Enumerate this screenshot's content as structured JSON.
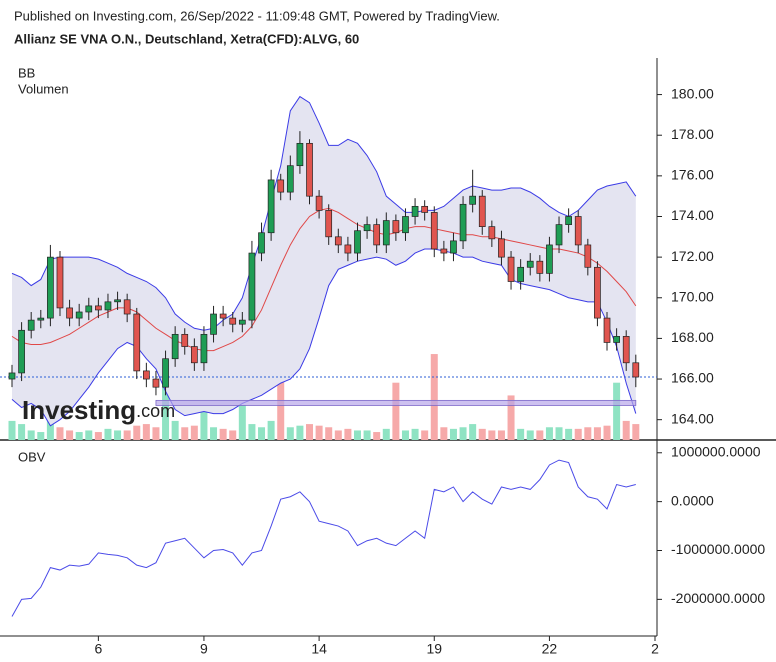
{
  "header": "Published on Investing.com, 26/Sep/2022 - 11:09:48 GMT, Powered by TradingView.",
  "chart_data": [
    {
      "type": "candlestick",
      "title": "Allianz SE VNA O.N., Deutschland, Xetra(CFD):ALVG, 60",
      "logo": "Investing",
      "logo_suffix": ".com",
      "open": [
        166.0,
        166.3,
        168.4,
        168.9,
        169.0,
        172.0,
        169.5,
        169.0,
        169.3,
        169.6,
        169.4,
        169.8,
        169.9,
        169.2,
        166.4,
        166.0,
        165.6,
        167.0,
        168.2,
        167.6,
        166.8,
        168.2,
        169.2,
        169.0,
        168.7,
        168.9,
        172.2,
        173.2,
        175.8,
        175.2,
        176.5,
        177.6,
        175.0,
        174.3,
        173.0,
        172.6,
        172.2,
        173.3,
        173.6,
        172.6,
        173.8,
        173.2,
        174.0,
        174.5,
        174.2,
        172.4,
        172.2,
        172.8,
        174.6,
        175.0,
        173.5,
        172.9,
        172.0,
        170.8,
        171.5,
        171.8,
        171.2,
        172.6,
        173.6,
        174.0,
        172.6,
        171.5,
        169.0,
        167.8,
        168.1,
        166.8,
        null,
        null
      ],
      "high": [
        166.7,
        168.8,
        169.3,
        169.4,
        172.6,
        172.3,
        169.9,
        169.7,
        170.0,
        170.0,
        170.2,
        170.3,
        170.2,
        169.5,
        166.8,
        166.4,
        167.4,
        168.6,
        168.5,
        168.0,
        168.6,
        169.6,
        169.6,
        169.3,
        169.3,
        172.8,
        173.7,
        176.3,
        176.1,
        177.0,
        178.2,
        177.8,
        175.3,
        174.6,
        173.4,
        173.0,
        173.7,
        174.0,
        173.9,
        174.2,
        174.1,
        174.4,
        174.9,
        174.8,
        174.5,
        172.8,
        173.2,
        175.0,
        176.3,
        175.3,
        173.8,
        173.3,
        172.3,
        171.9,
        172.2,
        172.1,
        173.0,
        174.0,
        174.4,
        174.3,
        172.9,
        171.8,
        169.3,
        168.5,
        168.4,
        167.2,
        null,
        null
      ],
      "low": [
        165.6,
        165.9,
        168.0,
        168.5,
        168.6,
        169.1,
        168.6,
        168.6,
        168.9,
        169.0,
        169.0,
        169.4,
        168.8,
        166.0,
        165.6,
        165.2,
        165.2,
        166.6,
        167.2,
        166.4,
        166.4,
        167.8,
        168.6,
        168.3,
        168.3,
        168.5,
        171.8,
        172.8,
        174.8,
        174.8,
        176.1,
        174.6,
        173.9,
        172.6,
        172.2,
        171.8,
        171.8,
        172.9,
        172.2,
        172.2,
        172.8,
        172.8,
        173.6,
        173.8,
        172.0,
        171.8,
        171.8,
        172.4,
        174.2,
        173.1,
        172.5,
        171.6,
        170.4,
        170.4,
        171.1,
        170.8,
        170.8,
        172.2,
        173.2,
        172.2,
        171.1,
        168.6,
        167.4,
        167.4,
        166.4,
        165.6,
        null,
        null
      ],
      "close": [
        166.3,
        168.4,
        168.9,
        169.0,
        172.0,
        169.5,
        169.0,
        169.3,
        169.6,
        169.4,
        169.8,
        169.9,
        169.2,
        166.4,
        166.0,
        165.6,
        167.0,
        168.2,
        167.6,
        166.8,
        168.2,
        169.2,
        169.0,
        168.7,
        168.9,
        172.2,
        173.2,
        175.8,
        175.2,
        176.5,
        177.6,
        175.0,
        174.3,
        173.0,
        172.6,
        172.2,
        173.3,
        173.6,
        172.6,
        173.8,
        173.2,
        174.0,
        174.5,
        174.2,
        172.4,
        172.2,
        172.8,
        174.6,
        175.0,
        173.5,
        172.9,
        172.0,
        170.8,
        171.5,
        171.8,
        171.2,
        172.6,
        173.6,
        174.0,
        172.6,
        171.5,
        169.0,
        167.8,
        168.1,
        166.8,
        166.1,
        null,
        null
      ],
      "up_color": "#1f9d55",
      "down_color": "#e0554f",
      "bands": {
        "name": "BB",
        "line_color": "#3b3be6",
        "middle_color": "#e04848",
        "fill": "#e4e4f1",
        "upper": [
          171.2,
          171.0,
          170.6,
          170.9,
          171.9,
          172.0,
          172.0,
          172.0,
          172.0,
          171.9,
          171.7,
          171.5,
          171.2,
          171.0,
          170.8,
          170.5,
          170.0,
          169.2,
          168.8,
          168.5,
          168.4,
          168.5,
          168.9,
          169.2,
          170.0,
          171.6,
          173.0,
          174.8,
          176.5,
          179.2,
          179.9,
          179.6,
          178.6,
          177.5,
          177.5,
          177.8,
          177.6,
          177.0,
          176.2,
          175.0,
          174.6,
          174.2,
          174.2,
          174.3,
          174.3,
          174.5,
          174.9,
          175.3,
          175.5,
          175.4,
          175.3,
          175.3,
          175.4,
          175.4,
          175.2,
          174.9,
          174.5,
          174.2,
          174.0,
          174.3,
          174.8,
          175.3,
          175.5,
          175.6,
          175.7,
          175.0,
          null,
          null
        ],
        "middle": [
          168.1,
          167.8,
          167.7,
          167.7,
          167.8,
          168.0,
          168.2,
          168.5,
          168.8,
          169.1,
          169.3,
          169.5,
          169.5,
          169.3,
          168.9,
          168.5,
          168.2,
          167.9,
          167.7,
          167.5,
          167.4,
          167.4,
          167.6,
          167.8,
          168.1,
          168.6,
          169.4,
          170.5,
          171.6,
          172.6,
          173.4,
          174.0,
          174.3,
          174.4,
          174.2,
          173.9,
          173.6,
          173.4,
          173.2,
          173.1,
          173.2,
          173.4,
          173.5,
          173.5,
          173.4,
          173.3,
          173.2,
          173.1,
          173.1,
          173.0,
          173.0,
          172.9,
          172.8,
          172.7,
          172.6,
          172.5,
          172.4,
          172.4,
          172.3,
          172.2,
          172.0,
          171.7,
          171.3,
          170.8,
          170.3,
          169.6,
          null,
          null
        ],
        "lower": [
          165.0,
          164.6,
          164.8,
          164.5,
          163.7,
          164.0,
          164.4,
          165.0,
          165.6,
          166.3,
          166.9,
          167.5,
          167.8,
          167.6,
          167.0,
          166.5,
          165.4,
          164.5,
          164.2,
          164.3,
          164.4,
          164.3,
          164.3,
          164.5,
          164.8,
          165.0,
          165.2,
          165.5,
          165.8,
          166.0,
          166.5,
          167.5,
          169.0,
          170.6,
          171.4,
          171.6,
          171.8,
          171.9,
          172.0,
          171.9,
          171.6,
          171.8,
          172.2,
          172.4,
          172.4,
          172.3,
          172.2,
          172.0,
          172.0,
          171.8,
          171.7,
          171.6,
          170.9,
          170.7,
          170.6,
          170.5,
          170.4,
          170.2,
          170.0,
          169.9,
          169.8,
          169.8,
          168.8,
          167.6,
          165.8,
          164.3,
          null,
          null
        ]
      },
      "volume": {
        "name": "Volumen",
        "up_color": "#8fe3c3",
        "down_color": "#f6a9a9",
        "vlim": [
          0,
          1200000
        ],
        "values": [
          60000,
          50000,
          30000,
          25000,
          160000,
          40000,
          30000,
          25000,
          30000,
          25000,
          35000,
          30000,
          30000,
          45000,
          50000,
          40000,
          180000,
          60000,
          40000,
          45000,
          100000,
          40000,
          35000,
          30000,
          110000,
          50000,
          40000,
          60000,
          200000,
          40000,
          45000,
          50000,
          45000,
          40000,
          30000,
          35000,
          30000,
          30000,
          25000,
          35000,
          180000,
          30000,
          35000,
          30000,
          270000,
          40000,
          35000,
          40000,
          50000,
          35000,
          30000,
          30000,
          140000,
          35000,
          30000,
          30000,
          40000,
          40000,
          35000,
          35000,
          40000,
          40000,
          45000,
          180000,
          60000,
          50000,
          null,
          null
        ]
      },
      "highlight_band": [
        164.7,
        164.95
      ],
      "highlight_color": "#b8a6ea",
      "last_price_line": true,
      "last_price_color": "#2c5fd6",
      "ylim": [
        163,
        181.8
      ],
      "yticks": [
        {
          "value": 164,
          "label": "164.00"
        },
        {
          "value": 166,
          "label": "166.00"
        },
        {
          "value": 168,
          "label": "168.00"
        },
        {
          "value": 170,
          "label": "170.00"
        },
        {
          "value": 172,
          "label": "172.00"
        },
        {
          "value": 174,
          "label": "174.00"
        },
        {
          "value": 176,
          "label": "176.00"
        },
        {
          "value": 178,
          "label": "178.00"
        },
        {
          "value": 180,
          "label": "180.00"
        }
      ]
    },
    {
      "type": "line",
      "categories": [
        null,
        null,
        null,
        null,
        null,
        null,
        null,
        null,
        null,
        "6",
        null,
        null,
        null,
        null,
        null,
        null,
        null,
        null,
        null,
        null,
        "9",
        null,
        null,
        null,
        null,
        null,
        null,
        null,
        null,
        null,
        null,
        null,
        "14",
        null,
        null,
        null,
        null,
        null,
        null,
        null,
        null,
        null,
        null,
        null,
        "19",
        null,
        null,
        null,
        null,
        null,
        null,
        null,
        null,
        null,
        null,
        null,
        "22",
        null,
        null,
        null,
        null,
        null,
        null,
        null,
        null,
        null,
        null,
        "2"
      ],
      "series": [
        {
          "name": "OBV",
          "color": "#4b4be8",
          "values": [
            -2350000,
            -2000000,
            -1980000,
            -1750000,
            -1350000,
            -1400000,
            -1300000,
            -1320000,
            -1280000,
            -1050000,
            -1080000,
            -1100000,
            -1150000,
            -1300000,
            -1350000,
            -1250000,
            -850000,
            -800000,
            -750000,
            -950000,
            -1150000,
            -1000000,
            -980000,
            -1050000,
            -1300000,
            -1050000,
            -1000000,
            -500000,
            50000,
            100000,
            200000,
            0,
            -400000,
            -450000,
            -500000,
            -600000,
            -900000,
            -800000,
            -750000,
            -850000,
            -900000,
            -750000,
            -600000,
            -750000,
            250000,
            200000,
            300000,
            0,
            200000,
            50000,
            -50000,
            300000,
            250000,
            300000,
            250000,
            450000,
            750000,
            850000,
            800000,
            300000,
            100000,
            50000,
            -150000,
            350000,
            300000,
            350000,
            null,
            null
          ]
        }
      ],
      "ylim": [
        -2750000,
        1200000
      ],
      "yticks": [
        {
          "value": -2000000,
          "label": "-2000000.0000"
        },
        {
          "value": -1000000,
          "label": "-1000000.0000"
        },
        {
          "value": 0,
          "label": "0.0000"
        },
        {
          "value": 1000000,
          "label": "1000000.0000"
        }
      ]
    }
  ]
}
